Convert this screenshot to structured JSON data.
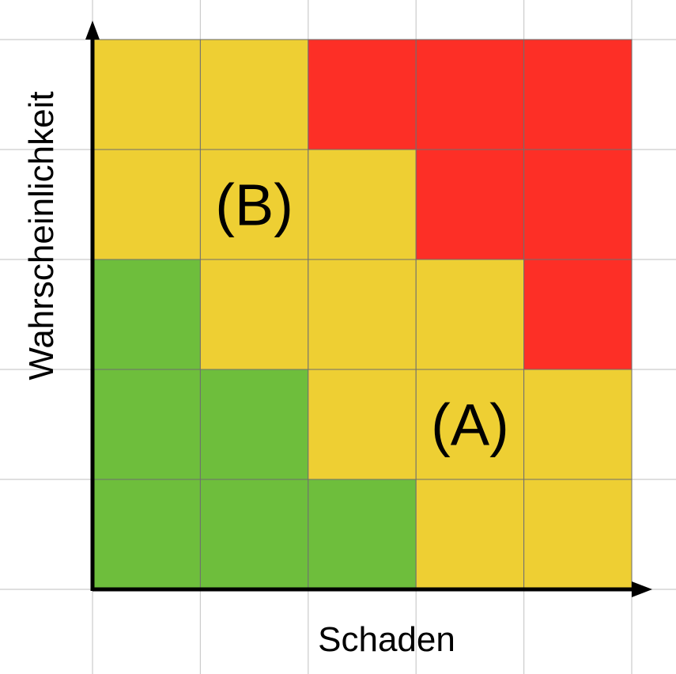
{
  "chart_data": {
    "type": "heatmap",
    "xlabel": "Schaden",
    "ylabel": "Wahrscheinlichkeit",
    "columns": 5,
    "rows": 5,
    "colors": {
      "green": "#6ebe3c",
      "yellow": "#eecf33",
      "red": "#fd2f26",
      "cell_border": "#6f6f6f",
      "background_grid": "#cccccc",
      "axis": "#000000"
    },
    "cells_bottom_to_top": [
      [
        "green",
        "green",
        "green",
        "yellow",
        "yellow"
      ],
      [
        "green",
        "green",
        "yellow",
        "yellow",
        "yellow"
      ],
      [
        "green",
        "yellow",
        "yellow",
        "yellow",
        "red"
      ],
      [
        "yellow",
        "yellow",
        "yellow",
        "red",
        "red"
      ],
      [
        "yellow",
        "yellow",
        "red",
        "red",
        "red"
      ]
    ],
    "annotations": [
      {
        "text": "(A)",
        "column": 4,
        "row": 2
      },
      {
        "text": "(B)",
        "column": 2,
        "row": 4
      }
    ]
  }
}
